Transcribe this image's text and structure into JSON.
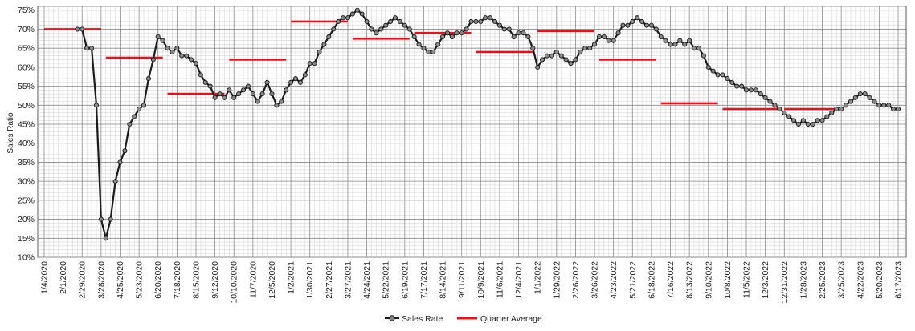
{
  "chart_data": {
    "type": "line",
    "title": "",
    "xlabel": "",
    "ylabel": "Sales Ratio",
    "ylim": [
      0.1,
      0.76
    ],
    "y_ticks": [
      0.1,
      0.15,
      0.2,
      0.25,
      0.3,
      0.35,
      0.4,
      0.45,
      0.5,
      0.55,
      0.6,
      0.65,
      0.7,
      0.75
    ],
    "y_tick_labels": [
      "10%",
      "15%",
      "20%",
      "25%",
      "30%",
      "35%",
      "40%",
      "45%",
      "50%",
      "55%",
      "60%",
      "65%",
      "70%",
      "75%"
    ],
    "x_tick_labels": [
      "1/4/2020",
      "2/1/2020",
      "2/29/2020",
      "3/28/2020",
      "4/25/2020",
      "5/23/2020",
      "6/20/2020",
      "7/18/2020",
      "8/15/2020",
      "9/12/2020",
      "10/10/2020",
      "11/7/2020",
      "12/5/2020",
      "1/2/2021",
      "1/30/2021",
      "2/27/2021",
      "3/27/2021",
      "4/24/2021",
      "5/22/2021",
      "6/19/2021",
      "7/17/2021",
      "8/14/2021",
      "9/11/2021",
      "10/9/2021",
      "11/6/2021",
      "12/4/2021",
      "1/1/2022",
      "1/29/2022",
      "2/26/2022",
      "3/26/2022",
      "4/23/2022",
      "5/21/2022",
      "6/18/2022",
      "7/16/2022",
      "8/13/2022",
      "9/10/2022",
      "10/8/2022",
      "11/5/2022",
      "12/3/2022",
      "12/31/2022",
      "1/28/2023",
      "2/25/2023",
      "3/25/2023",
      "4/22/2023",
      "5/20/2023",
      "6/17/2023"
    ],
    "grid": true,
    "legend_position": "bottom",
    "series": [
      {
        "name": "Sales Rate",
        "color": "#1a1a1a",
        "marker_color": "#888888",
        "x_week_index": [
          7,
          8,
          9,
          10,
          11,
          12,
          13,
          14,
          15,
          16,
          17,
          18,
          19,
          20,
          21,
          22,
          23,
          24,
          25,
          26,
          27,
          28,
          29,
          30,
          31,
          32,
          33,
          34,
          35,
          36,
          37,
          38,
          39,
          40,
          41,
          42,
          43,
          44,
          45,
          46,
          47,
          48,
          49,
          50,
          51,
          52,
          53,
          54,
          55,
          56,
          57,
          58,
          59,
          60,
          61,
          62,
          63,
          64,
          65,
          66,
          67,
          68,
          69,
          70,
          71,
          72,
          73,
          74,
          75,
          76,
          77,
          78,
          79,
          80,
          81,
          82,
          83,
          84,
          85,
          86,
          87,
          88,
          89,
          90,
          91,
          92,
          93,
          94,
          95,
          96,
          97,
          98,
          99,
          100,
          101,
          102,
          103,
          104,
          105,
          106,
          107,
          108,
          109,
          110,
          111,
          112,
          113,
          114,
          115,
          116,
          117,
          118,
          119,
          120,
          121,
          122,
          123,
          124,
          125,
          126,
          127,
          128,
          129,
          130,
          131,
          132,
          133,
          134,
          135,
          136,
          137,
          138,
          139,
          140,
          141,
          142,
          143,
          144,
          145,
          146,
          147,
          148,
          149,
          150,
          151,
          152,
          153,
          154,
          155,
          156,
          157,
          158,
          159,
          160,
          161,
          162,
          163,
          164,
          165,
          166,
          167,
          168,
          169,
          170,
          171,
          172,
          173,
          174,
          175,
          176,
          177,
          178,
          179,
          180
        ],
        "values": [
          0.7,
          0.7,
          0.65,
          0.65,
          0.5,
          0.2,
          0.15,
          0.2,
          0.3,
          0.35,
          0.38,
          0.45,
          0.47,
          0.49,
          0.5,
          0.57,
          0.62,
          0.68,
          0.67,
          0.65,
          0.64,
          0.65,
          0.63,
          0.63,
          0.62,
          0.61,
          0.58,
          0.56,
          0.55,
          0.52,
          0.53,
          0.52,
          0.54,
          0.52,
          0.53,
          0.54,
          0.55,
          0.53,
          0.51,
          0.53,
          0.56,
          0.53,
          0.5,
          0.51,
          0.54,
          0.56,
          0.57,
          0.56,
          0.58,
          0.61,
          0.61,
          0.64,
          0.66,
          0.68,
          0.7,
          0.72,
          0.73,
          0.73,
          0.74,
          0.75,
          0.74,
          0.72,
          0.7,
          0.69,
          0.7,
          0.71,
          0.72,
          0.73,
          0.72,
          0.71,
          0.7,
          0.68,
          0.66,
          0.65,
          0.64,
          0.64,
          0.66,
          0.68,
          0.69,
          0.68,
          0.69,
          0.69,
          0.7,
          0.72,
          0.72,
          0.72,
          0.73,
          0.73,
          0.72,
          0.71,
          0.7,
          0.7,
          0.68,
          0.69,
          0.69,
          0.68,
          0.65,
          0.6,
          0.62,
          0.63,
          0.63,
          0.64,
          0.63,
          0.62,
          0.61,
          0.62,
          0.64,
          0.65,
          0.65,
          0.66,
          0.68,
          0.68,
          0.67,
          0.67,
          0.69,
          0.71,
          0.71,
          0.72,
          0.73,
          0.72,
          0.71,
          0.71,
          0.7,
          0.68,
          0.67,
          0.66,
          0.66,
          0.67,
          0.66,
          0.67,
          0.65,
          0.65,
          0.63,
          0.6,
          0.59,
          0.58,
          0.58,
          0.57,
          0.56,
          0.55,
          0.55,
          0.54,
          0.54,
          0.54,
          0.53,
          0.52,
          0.51,
          0.5,
          0.49,
          0.48,
          0.47,
          0.46,
          0.45,
          0.46,
          0.45,
          0.45,
          0.46,
          0.46,
          0.47,
          0.48,
          0.49,
          0.49,
          0.5,
          0.51,
          0.52,
          0.53,
          0.53,
          0.52,
          0.51,
          0.5,
          0.5,
          0.5,
          0.49,
          0.49,
          0.48,
          0.48,
          0.49,
          0.48
        ]
      },
      {
        "name": "Quarter Average",
        "color": "#e8111b",
        "segments": [
          {
            "from_week": 0,
            "to_week": 12,
            "value": 0.7
          },
          {
            "from_week": 13,
            "to_week": 25,
            "value": 0.625
          },
          {
            "from_week": 26,
            "to_week": 38,
            "value": 0.53
          },
          {
            "from_week": 39,
            "to_week": 51,
            "value": 0.62
          },
          {
            "from_week": 52,
            "to_week": 64,
            "value": 0.72
          },
          {
            "from_week": 65,
            "to_week": 77,
            "value": 0.675
          },
          {
            "from_week": 78,
            "to_week": 90,
            "value": 0.69
          },
          {
            "from_week": 91,
            "to_week": 103,
            "value": 0.64
          },
          {
            "from_week": 104,
            "to_week": 116,
            "value": 0.695
          },
          {
            "from_week": 117,
            "to_week": 129,
            "value": 0.62
          },
          {
            "from_week": 130,
            "to_week": 142,
            "value": 0.505
          },
          {
            "from_week": 143,
            "to_week": 155,
            "value": 0.49
          },
          {
            "from_week": 156,
            "to_week": 168,
            "value": 0.49
          }
        ]
      }
    ]
  }
}
